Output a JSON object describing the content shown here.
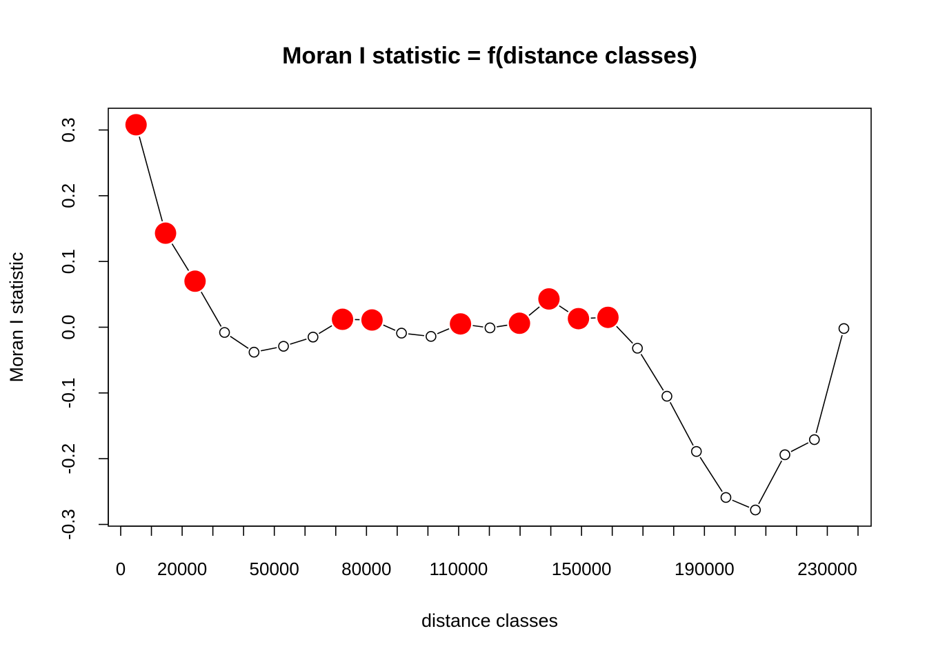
{
  "chart_data": {
    "type": "line",
    "title": "Moran I statistic = f(distance classes)",
    "xlabel": "distance classes",
    "ylabel": "Moran I statistic",
    "xlim": [
      -5000,
      245000
    ],
    "ylim": [
      -0.3,
      0.3
    ],
    "x_ticks": [
      0,
      10000,
      20000,
      30000,
      40000,
      50000,
      60000,
      70000,
      80000,
      90000,
      100000,
      110000,
      120000,
      130000,
      140000,
      150000,
      160000,
      170000,
      180000,
      190000,
      200000,
      210000,
      220000,
      230000,
      240000
    ],
    "x_tick_labels": [
      "0",
      "20000",
      "50000",
      "80000",
      "110000",
      "150000",
      "190000",
      "230000"
    ],
    "x_tick_label_values": [
      0,
      20000,
      50000,
      80000,
      110000,
      150000,
      190000,
      230000
    ],
    "y_ticks": [
      -0.3,
      -0.2,
      -0.1,
      0.0,
      0.1,
      0.2,
      0.3
    ],
    "y_tick_labels": [
      "-0.3",
      "-0.2",
      "-0.1",
      "0.0",
      "0.1",
      "0.2",
      "0.3"
    ],
    "significant_color": "#ff0000",
    "points": [
      {
        "x": 5000,
        "y": 0.308,
        "significant": true
      },
      {
        "x": 14600,
        "y": 0.143,
        "significant": true
      },
      {
        "x": 24200,
        "y": 0.07,
        "significant": true
      },
      {
        "x": 33800,
        "y": -0.008,
        "significant": false
      },
      {
        "x": 43400,
        "y": -0.038,
        "significant": false
      },
      {
        "x": 53000,
        "y": -0.029,
        "significant": false
      },
      {
        "x": 62600,
        "y": -0.015,
        "significant": false
      },
      {
        "x": 72200,
        "y": 0.012,
        "significant": true
      },
      {
        "x": 81800,
        "y": 0.011,
        "significant": true
      },
      {
        "x": 91400,
        "y": -0.009,
        "significant": false
      },
      {
        "x": 101000,
        "y": -0.014,
        "significant": false
      },
      {
        "x": 110600,
        "y": 0.005,
        "significant": true
      },
      {
        "x": 120200,
        "y": -0.001,
        "significant": false
      },
      {
        "x": 129800,
        "y": 0.006,
        "significant": true
      },
      {
        "x": 139400,
        "y": 0.043,
        "significant": true
      },
      {
        "x": 149000,
        "y": 0.013,
        "significant": true
      },
      {
        "x": 158600,
        "y": 0.015,
        "significant": true
      },
      {
        "x": 168200,
        "y": -0.032,
        "significant": false
      },
      {
        "x": 177800,
        "y": -0.105,
        "significant": false
      },
      {
        "x": 187400,
        "y": -0.189,
        "significant": false
      },
      {
        "x": 197000,
        "y": -0.259,
        "significant": false
      },
      {
        "x": 206600,
        "y": -0.278,
        "significant": false
      },
      {
        "x": 216200,
        "y": -0.194,
        "significant": false
      },
      {
        "x": 225800,
        "y": -0.171,
        "significant": false
      },
      {
        "x": 235400,
        "y": -0.002,
        "significant": false
      }
    ]
  }
}
